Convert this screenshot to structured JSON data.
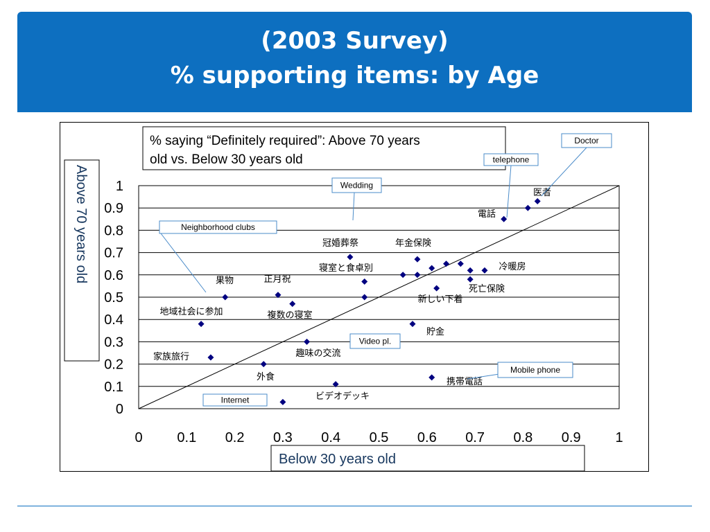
{
  "slide": {
    "title_line1": "(2003 Survey)",
    "title_line2": "% supporting items: by Age",
    "header_color": "#0d6fc0"
  },
  "chart_data": {
    "type": "scatter",
    "note": "% saying “Definitely required”:  Above 70 years old vs.  Below 30 years old",
    "xlabel": "Below 30 years old",
    "ylabel": "Above  70  years old",
    "xlim": [
      0,
      1
    ],
    "ylim": [
      0,
      1
    ],
    "x_ticks": [
      "0",
      "0.1",
      "0.2",
      "0.3",
      "0.4",
      "0.5",
      "0.6",
      "0.7",
      "0.8",
      "0.9",
      "1"
    ],
    "y_ticks": [
      "0",
      "0.1",
      "0.2",
      "0.3",
      "0.4",
      "0.5",
      "0.6",
      "0.7",
      "0.8",
      "0.9",
      "1"
    ],
    "grid": "horizontal",
    "reference_line": "y = x",
    "marker_color": "#000080",
    "points": [
      {
        "x": 0.83,
        "y": 0.93,
        "label": "医者"
      },
      {
        "x": 0.81,
        "y": 0.9
      },
      {
        "x": 0.76,
        "y": 0.85,
        "label": "電話"
      },
      {
        "x": 0.44,
        "y": 0.68,
        "label": "冠婚葬祭"
      },
      {
        "x": 0.58,
        "y": 0.67,
        "label": "年金保険"
      },
      {
        "x": 0.64,
        "y": 0.65
      },
      {
        "x": 0.67,
        "y": 0.65
      },
      {
        "x": 0.61,
        "y": 0.63
      },
      {
        "x": 0.69,
        "y": 0.62
      },
      {
        "x": 0.72,
        "y": 0.62,
        "label": "冷暖房"
      },
      {
        "x": 0.55,
        "y": 0.6
      },
      {
        "x": 0.58,
        "y": 0.6
      },
      {
        "x": 0.69,
        "y": 0.58
      },
      {
        "x": 0.47,
        "y": 0.57,
        "label": "寝室と食卓別"
      },
      {
        "x": 0.62,
        "y": 0.54,
        "label": "死亡保険"
      },
      {
        "x": 0.18,
        "y": 0.5,
        "label": "果物"
      },
      {
        "x": 0.29,
        "y": 0.51,
        "label": "正月祝"
      },
      {
        "x": 0.47,
        "y": 0.5,
        "label": "新しい下着"
      },
      {
        "x": 0.32,
        "y": 0.47,
        "label": "複数の寝室"
      },
      {
        "x": 0.13,
        "y": 0.38,
        "label": "地域社会に参加"
      },
      {
        "x": 0.57,
        "y": 0.38,
        "label": "貯金"
      },
      {
        "x": 0.35,
        "y": 0.3,
        "label": "趣味の交流"
      },
      {
        "x": 0.15,
        "y": 0.23,
        "label": "家族旅行"
      },
      {
        "x": 0.26,
        "y": 0.2,
        "label": "外食"
      },
      {
        "x": 0.61,
        "y": 0.14,
        "label": "携帯電話"
      },
      {
        "x": 0.41,
        "y": 0.11,
        "label": "ビデオデッキ"
      },
      {
        "x": 0.3,
        "y": 0.03
      }
    ],
    "callouts": [
      "Doctor",
      "telephone",
      "Wedding",
      "Neighborhood clubs",
      "Video pl.",
      "Mobile   phone",
      "Internet"
    ]
  }
}
